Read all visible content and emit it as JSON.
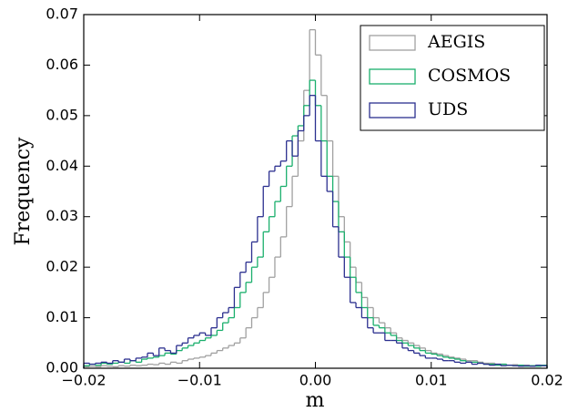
{
  "chart_data": {
    "type": "histogram",
    "xlabel": "m",
    "ylabel": "Frequency",
    "bins": [
      -0.02,
      -0.0195,
      -0.019,
      -0.0185,
      -0.018,
      -0.0175,
      -0.017,
      -0.0165,
      -0.016,
      -0.0155,
      -0.015,
      -0.0145,
      -0.014,
      -0.0135,
      -0.013,
      -0.0125,
      -0.012,
      -0.0115,
      -0.011,
      -0.0105,
      -0.01,
      -0.0095,
      -0.009,
      -0.0085,
      -0.008,
      -0.0075,
      -0.007,
      -0.0065,
      -0.006,
      -0.0055,
      -0.005,
      -0.0045,
      -0.004,
      -0.0035,
      -0.003,
      -0.0025,
      -0.002,
      -0.0015,
      -0.001,
      -0.0005,
      0,
      0.0005,
      0.001,
      0.0015,
      0.002,
      0.0025,
      0.003,
      0.0035,
      0.004,
      0.0045,
      0.005,
      0.0055,
      0.006,
      0.0065,
      0.007,
      0.0075,
      0.008,
      0.0085,
      0.009,
      0.0095,
      0.01,
      0.0105,
      0.011,
      0.0115,
      0.012,
      0.0125,
      0.013,
      0.0135,
      0.014,
      0.0145,
      0.015,
      0.0155,
      0.016,
      0.0165,
      0.017,
      0.0175,
      0.018,
      0.0185,
      0.019,
      0.0195,
      0.02
    ],
    "series": [
      {
        "name": "AEGIS",
        "color": "#a0a0a0",
        "values": [
          0.0003,
          0.0004,
          0.0003,
          0.0005,
          0.0004,
          0.0003,
          0.0005,
          0.0004,
          0.0006,
          0.0005,
          0.0006,
          0.0008,
          0.0007,
          0.001,
          0.0008,
          0.0012,
          0.001,
          0.0015,
          0.0018,
          0.002,
          0.0022,
          0.0025,
          0.003,
          0.0035,
          0.004,
          0.0045,
          0.005,
          0.006,
          0.008,
          0.01,
          0.012,
          0.015,
          0.018,
          0.022,
          0.026,
          0.032,
          0.038,
          0.045,
          0.055,
          0.067,
          0.062,
          0.054,
          0.045,
          0.038,
          0.03,
          0.025,
          0.02,
          0.017,
          0.014,
          0.012,
          0.01,
          0.009,
          0.008,
          0.007,
          0.006,
          0.0055,
          0.005,
          0.0045,
          0.004,
          0.0035,
          0.003,
          0.0028,
          0.0025,
          0.0022,
          0.002,
          0.0018,
          0.0015,
          0.0015,
          0.0012,
          0.001,
          0.001,
          0.0008,
          0.0008,
          0.0006,
          0.0007,
          0.0005,
          0.0006,
          0.0005,
          0.0004,
          0.0005
        ]
      },
      {
        "name": "COSMOS",
        "color": "#1aaf6c",
        "values": [
          0.0005,
          0.0008,
          0.0006,
          0.001,
          0.0008,
          0.001,
          0.0012,
          0.001,
          0.0015,
          0.0012,
          0.0018,
          0.002,
          0.0022,
          0.0025,
          0.003,
          0.0028,
          0.0035,
          0.004,
          0.0045,
          0.005,
          0.0055,
          0.006,
          0.0065,
          0.0075,
          0.009,
          0.01,
          0.012,
          0.015,
          0.017,
          0.02,
          0.022,
          0.027,
          0.03,
          0.033,
          0.036,
          0.04,
          0.046,
          0.048,
          0.052,
          0.057,
          0.052,
          0.045,
          0.038,
          0.033,
          0.027,
          0.022,
          0.018,
          0.015,
          0.012,
          0.01,
          0.0085,
          0.008,
          0.007,
          0.0065,
          0.0055,
          0.005,
          0.0045,
          0.004,
          0.0035,
          0.003,
          0.0028,
          0.0025,
          0.0022,
          0.002,
          0.0018,
          0.0015,
          0.0012,
          0.0012,
          0.001,
          0.0008,
          0.0008,
          0.0006,
          0.0008,
          0.0006,
          0.0005,
          0.0006,
          0.0004,
          0.0005,
          0.0004,
          0.0006
        ]
      },
      {
        "name": "UDS",
        "color": "#2b2f8f",
        "values": [
          0.001,
          0.0008,
          0.001,
          0.0012,
          0.001,
          0.0015,
          0.0012,
          0.0018,
          0.0015,
          0.002,
          0.0022,
          0.003,
          0.0025,
          0.004,
          0.0035,
          0.003,
          0.0045,
          0.005,
          0.006,
          0.0065,
          0.007,
          0.0065,
          0.008,
          0.01,
          0.011,
          0.012,
          0.016,
          0.019,
          0.021,
          0.025,
          0.03,
          0.036,
          0.039,
          0.04,
          0.041,
          0.045,
          0.042,
          0.047,
          0.05,
          0.054,
          0.045,
          0.038,
          0.035,
          0.028,
          0.022,
          0.018,
          0.013,
          0.012,
          0.01,
          0.008,
          0.007,
          0.007,
          0.0055,
          0.0055,
          0.005,
          0.004,
          0.0035,
          0.003,
          0.0025,
          0.002,
          0.002,
          0.0018,
          0.0015,
          0.0015,
          0.0012,
          0.001,
          0.0012,
          0.0008,
          0.001,
          0.0008,
          0.0006,
          0.0008,
          0.0005,
          0.0006,
          0.0005,
          0.0004,
          0.0005,
          0.0004,
          0.0006,
          0.0005
        ]
      }
    ],
    "xlim": [
      -0.02,
      0.02
    ],
    "xticks": [
      {
        "value": -0.02,
        "label": "−0.02"
      },
      {
        "value": -0.01,
        "label": "−0.01"
      },
      {
        "value": 0,
        "label": "0.00"
      },
      0.01,
      0.02
    ],
    "ylim": [
      0,
      0.07
    ],
    "yticks": [
      {
        "value": 0,
        "label": "0.00"
      },
      0.01,
      0.02,
      0.03,
      0.04,
      0.05,
      0.06,
      0.07
    ],
    "legend": "upper right"
  }
}
